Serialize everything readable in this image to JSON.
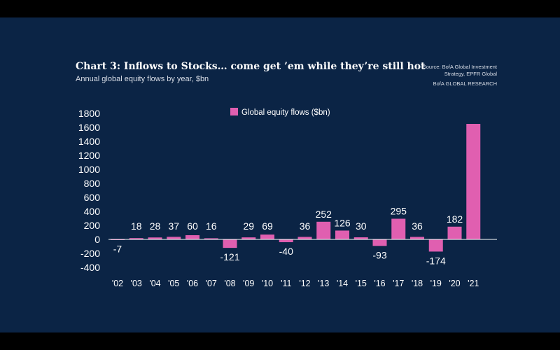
{
  "title": "Chart 3: Inflows to Stocks… come get ’em while they’re still hot",
  "subtitle": "Annual global equity flows by year, $bn",
  "source": {
    "line1": "Source: BofA Global Investment",
    "line2": "Strategy, EPFR Global",
    "line3": "BofA GLOBAL RESEARCH"
  },
  "colors": {
    "background": "#0b2445",
    "bar": "#e05fb0",
    "text": "#ffffff",
    "axis": "#ffffff"
  },
  "chart_data": {
    "type": "bar",
    "categories": [
      "'02",
      "'03",
      "'04",
      "'05",
      "'06",
      "'07",
      "'08",
      "'09",
      "'10",
      "'11",
      "'12",
      "'13",
      "'14",
      "'15",
      "'16",
      "'17",
      "'18",
      "'19",
      "'20",
      "'21"
    ],
    "series": [
      {
        "name": "Global equity flows ($bn)",
        "values": [
          -7,
          18,
          28,
          37,
          60,
          16,
          -121,
          29,
          69,
          -40,
          36,
          252,
          126,
          30,
          -93,
          295,
          36,
          -174,
          182,
          1650
        ],
        "labels": [
          "-7",
          "18",
          "28",
          "37",
          "60",
          "16",
          "-121",
          "29",
          "69",
          "-40",
          "36",
          "252",
          "126",
          "30",
          "-93",
          "295",
          "36",
          "-174",
          "182",
          ""
        ]
      }
    ],
    "yticks": [
      1800,
      1600,
      1400,
      1200,
      1000,
      800,
      600,
      400,
      200,
      0,
      -200,
      -400
    ],
    "ylim": [
      -400,
      1800
    ],
    "legend": "top-center",
    "grid": false
  }
}
